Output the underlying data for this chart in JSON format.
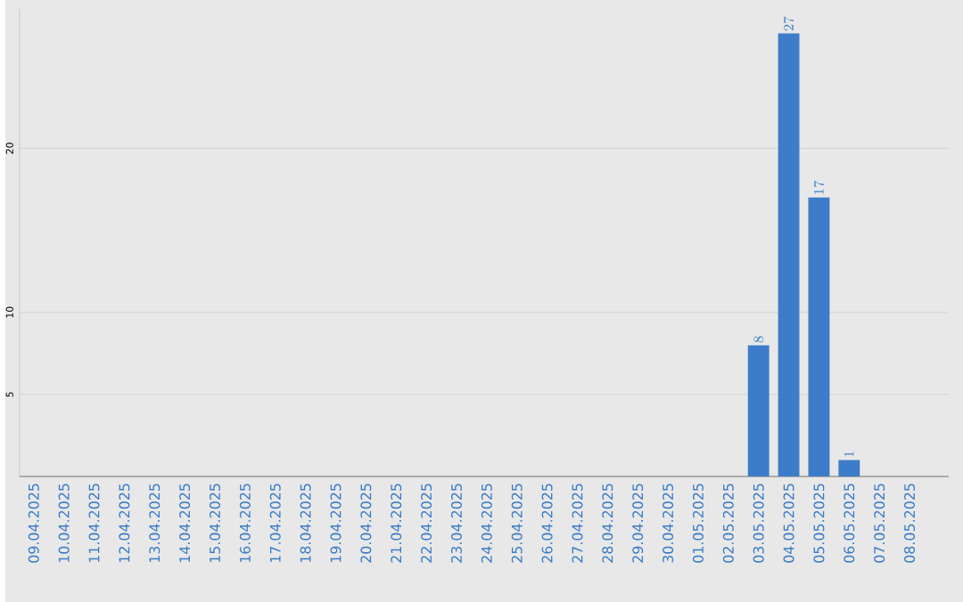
{
  "chart_data": {
    "type": "bar",
    "categories": [
      "09.04.2025",
      "10.04.2025",
      "11.04.2025",
      "12.04.2025",
      "13.04.2025",
      "14.04.2025",
      "15.04.2025",
      "16.04.2025",
      "17.04.2025",
      "18.04.2025",
      "19.04.2025",
      "20.04.2025",
      "21.04.2025",
      "22.04.2025",
      "23.04.2025",
      "24.04.2025",
      "25.04.2025",
      "26.04.2025",
      "27.04.2025",
      "28.04.2025",
      "29.04.2025",
      "30.04.2025",
      "01.05.2025",
      "02.05.2025",
      "03.05.2025",
      "04.05.2025",
      "05.05.2025",
      "06.05.2025",
      "07.05.2025",
      "08.05.2025"
    ],
    "values": [
      null,
      null,
      null,
      null,
      null,
      null,
      null,
      null,
      null,
      null,
      null,
      null,
      null,
      null,
      null,
      null,
      null,
      null,
      null,
      null,
      null,
      null,
      null,
      null,
      8,
      27,
      17,
      1,
      null,
      null
    ],
    "color": "#3d7cc9",
    "ylim": [
      0,
      28.5
    ],
    "yticks": [
      5,
      10,
      20
    ],
    "grid": "y",
    "data_labels": true
  }
}
